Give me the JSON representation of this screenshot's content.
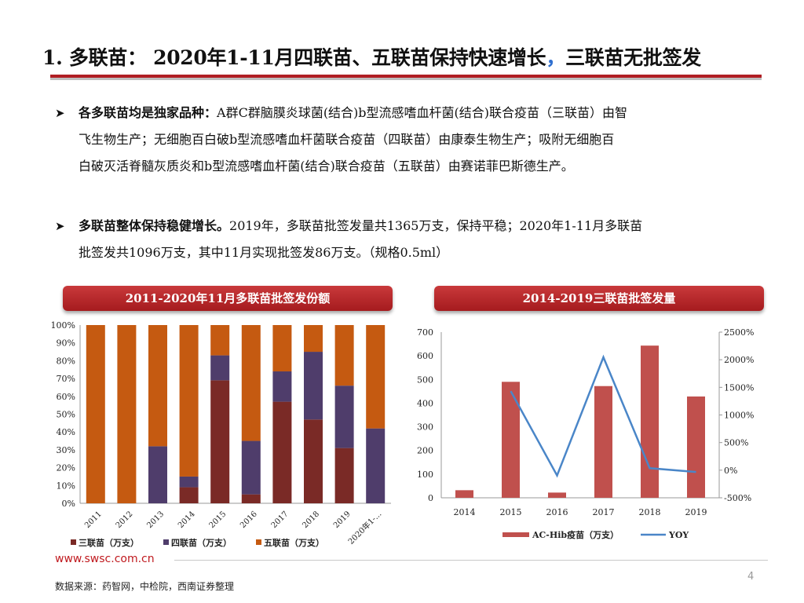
{
  "title": {
    "main": "1. 多联苗： 2020年1-11月四联苗、五联苗保持快速增长",
    "accent": "，",
    "tail": "三联苗无批签发"
  },
  "bullets": [
    {
      "bold": "各多联苗均是独家品种：",
      "lines": [
        "A群C群脑膜炎球菌(结合)b型流感嗜血杆菌(结合)联合疫苗（三联苗）由智",
        "飞生物生产；无细胞百白破b型流感嗜血杆菌联合疫苗（四联苗）由康泰生物生产；吸附无细胞百",
        "白破灭活脊髓灰质炎和b型流感嗜血杆菌(结合)联合疫苗（五联苗）由赛诺菲巴斯德生产。"
      ]
    },
    {
      "bold": "多联苗整体保持稳健增长。",
      "lines": [
        "2019年，多联苗批签发量共1365万支，保持平稳；2020年1-11月多联苗",
        "批签发共1096万支，其中11月实现批签发86万支。（规格0.5ml）"
      ]
    }
  ],
  "chart_data": [
    {
      "type": "bar",
      "stacked": true,
      "title": "2011-2020年11月多联苗批签发份额",
      "categories": [
        "2011",
        "2012",
        "2013",
        "2014",
        "2015",
        "2016",
        "2017",
        "2018",
        "2019",
        "2020年1-..."
      ],
      "series": [
        {
          "name": "三联苗（万支）",
          "color": "#7a2a26",
          "values": [
            0,
            0,
            0,
            9,
            69,
            5,
            57,
            47,
            31,
            0
          ]
        },
        {
          "name": "四联苗（万支）",
          "color": "#4f3d6b",
          "values": [
            0,
            0,
            32,
            6,
            14,
            30,
            17,
            38,
            35,
            42
          ]
        },
        {
          "name": "五联苗（万支）",
          "color": "#c55a11",
          "values": [
            100,
            100,
            68,
            85,
            17,
            65,
            26,
            15,
            34,
            58
          ]
        }
      ],
      "yticks": [
        "0%",
        "10%",
        "20%",
        "30%",
        "40%",
        "50%",
        "60%",
        "70%",
        "80%",
        "90%",
        "100%"
      ],
      "ylim": [
        0,
        100
      ],
      "legend": "bottom"
    },
    {
      "type": "bar+line",
      "title": "2014-2019三联苗批签发量",
      "categories": [
        "2014",
        "2015",
        "2016",
        "2017",
        "2018",
        "2019"
      ],
      "bar_series": {
        "name": "AC-Hib疫苗（万支）",
        "color": "#c0504d",
        "values": [
          32,
          490,
          22,
          472,
          643,
          428
        ]
      },
      "line_series": {
        "name": "YOY",
        "color": "#4a86c8",
        "values": [
          null,
          1431,
          -96,
          2045,
          36,
          -33
        ]
      },
      "yticks_left": [
        "0",
        "100",
        "200",
        "300",
        "400",
        "500",
        "600",
        "700"
      ],
      "ylim_left": [
        0,
        700
      ],
      "yticks_right": [
        "-500%",
        "0%",
        "500%",
        "1000%",
        "1500%",
        "2000%",
        "2500%"
      ],
      "ylim_right": [
        -500,
        2500
      ],
      "legend": "bottom"
    }
  ],
  "footer": {
    "site": "www.swsc.com.cn",
    "page": "4",
    "source": "数据来源：药智网，中检院，西南证券整理"
  }
}
